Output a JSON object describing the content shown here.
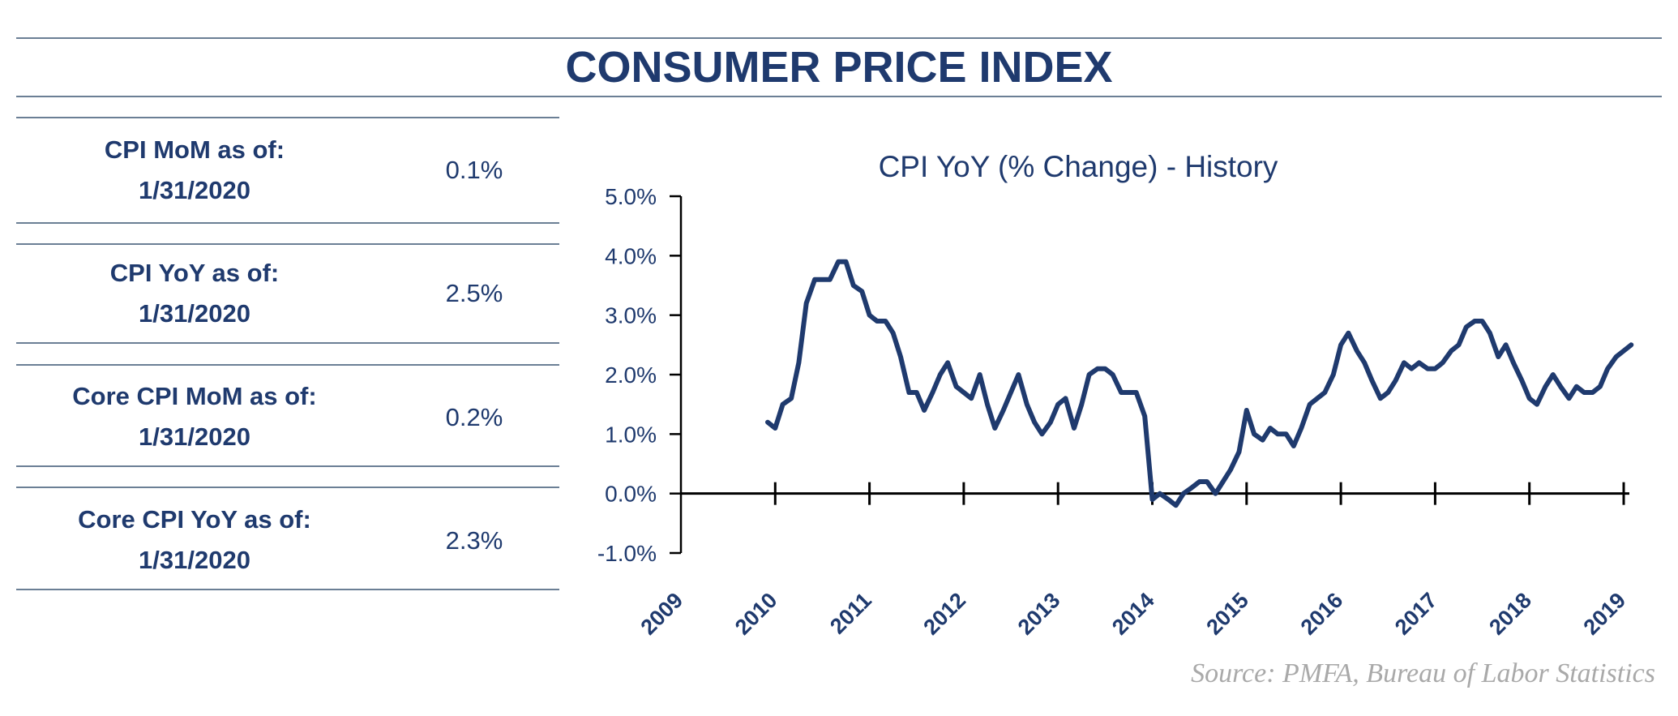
{
  "title": "CONSUMER PRICE INDEX",
  "stats": [
    {
      "label_line1": "CPI MoM as of:",
      "label_line2": "1/31/2020",
      "value": "0.1%"
    },
    {
      "label_line1": "CPI YoY as of:",
      "label_line2": "1/31/2020",
      "value": "2.5%"
    },
    {
      "label_line1": "Core CPI MoM as of:",
      "label_line2": "1/31/2020",
      "value": "0.2%"
    },
    {
      "label_line1": "Core CPI YoY as of:",
      "label_line2": "1/31/2020",
      "value": "2.3%"
    }
  ],
  "source": "Source:  PMFA,  Bureau of Labor Statistics",
  "colors": {
    "primary": "#1f3a6e",
    "rule": "#6b7f95",
    "source": "#a9a9a9",
    "line": "#1f3a6e"
  },
  "chart_data": {
    "type": "line",
    "title": "CPI YoY (% Change) - History",
    "xlabel": "",
    "ylabel": "",
    "ylim": [
      -1.0,
      5.0
    ],
    "yticks": [
      -1.0,
      0.0,
      1.0,
      2.0,
      3.0,
      4.0,
      5.0
    ],
    "ytick_labels": [
      "-1.0%",
      "0.0%",
      "1.0%",
      "2.0%",
      "3.0%",
      "4.0%",
      "5.0%"
    ],
    "xlim": [
      2009,
      2019.15
    ],
    "xticks": [
      2009,
      2010,
      2011,
      2012,
      2013,
      2014,
      2015,
      2016,
      2017,
      2018,
      2019
    ],
    "xtick_labels": [
      "2009",
      "2010",
      "2011",
      "2012",
      "2013",
      "2014",
      "2015",
      "2016",
      "2017",
      "2018",
      "2019"
    ],
    "legend": "none",
    "series": [
      {
        "name": "CPI YoY",
        "x": [
          2009.92,
          2010.0,
          2010.08,
          2010.17,
          2010.25,
          2010.33,
          2010.42,
          2010.5,
          2010.58,
          2010.67,
          2010.75,
          2010.83,
          2010.92,
          2011.0,
          2011.08,
          2011.17,
          2011.25,
          2011.33,
          2011.42,
          2011.5,
          2011.58,
          2011.67,
          2011.75,
          2011.83,
          2011.92,
          2012.0,
          2012.08,
          2012.17,
          2012.25,
          2012.33,
          2012.42,
          2012.5,
          2012.58,
          2012.67,
          2012.75,
          2012.83,
          2012.92,
          2013.0,
          2013.08,
          2013.17,
          2013.25,
          2013.33,
          2013.42,
          2013.5,
          2013.58,
          2013.67,
          2013.75,
          2013.83,
          2013.92,
          2014.0,
          2014.08,
          2014.17,
          2014.25,
          2014.33,
          2014.42,
          2014.5,
          2014.58,
          2014.67,
          2014.75,
          2014.83,
          2014.92,
          2015.0,
          2015.08,
          2015.17,
          2015.25,
          2015.33,
          2015.42,
          2015.5,
          2015.58,
          2015.67,
          2015.75,
          2015.83,
          2015.92,
          2016.0,
          2016.08,
          2016.17,
          2016.25,
          2016.33,
          2016.42,
          2016.5,
          2016.58,
          2016.67,
          2016.75,
          2016.83,
          2016.92,
          2017.0,
          2017.08,
          2017.17,
          2017.25,
          2017.33,
          2017.42,
          2017.5,
          2017.58,
          2017.67,
          2017.75,
          2017.83,
          2017.92,
          2018.0,
          2018.08,
          2018.17,
          2018.25,
          2018.33,
          2018.42,
          2018.5,
          2018.58,
          2018.67,
          2018.75,
          2018.83,
          2018.92,
          2019.0,
          2019.08
        ],
        "values": [
          1.2,
          1.1,
          1.5,
          1.6,
          2.2,
          3.2,
          3.6,
          3.6,
          3.6,
          3.9,
          3.9,
          3.5,
          3.4,
          3.0,
          2.9,
          2.9,
          2.7,
          2.3,
          1.7,
          1.7,
          1.4,
          1.7,
          2.0,
          2.2,
          1.8,
          1.7,
          1.6,
          2.0,
          1.5,
          1.1,
          1.4,
          1.7,
          2.0,
          1.5,
          1.2,
          1.0,
          1.2,
          1.5,
          1.6,
          1.1,
          1.5,
          2.0,
          2.1,
          2.1,
          2.0,
          1.7,
          1.7,
          1.7,
          1.3,
          -0.1,
          0.0,
          -0.1,
          -0.2,
          0.0,
          0.1,
          0.2,
          0.2,
          0.0,
          0.2,
          0.4,
          0.7,
          1.4,
          1.0,
          0.9,
          1.1,
          1.0,
          1.0,
          0.8,
          1.1,
          1.5,
          1.6,
          1.7,
          2.0,
          2.5,
          2.7,
          2.4,
          2.2,
          1.9,
          1.6,
          1.7,
          1.9,
          2.2,
          2.1,
          2.2,
          2.1,
          2.1,
          2.2,
          2.4,
          2.5,
          2.8,
          2.9,
          2.9,
          2.7,
          2.3,
          2.5,
          2.2,
          1.9,
          1.6,
          1.5,
          1.8,
          2.0,
          1.8,
          1.6,
          1.8,
          1.7,
          1.7,
          1.8,
          2.1,
          2.3,
          2.4,
          2.5
        ]
      }
    ]
  }
}
